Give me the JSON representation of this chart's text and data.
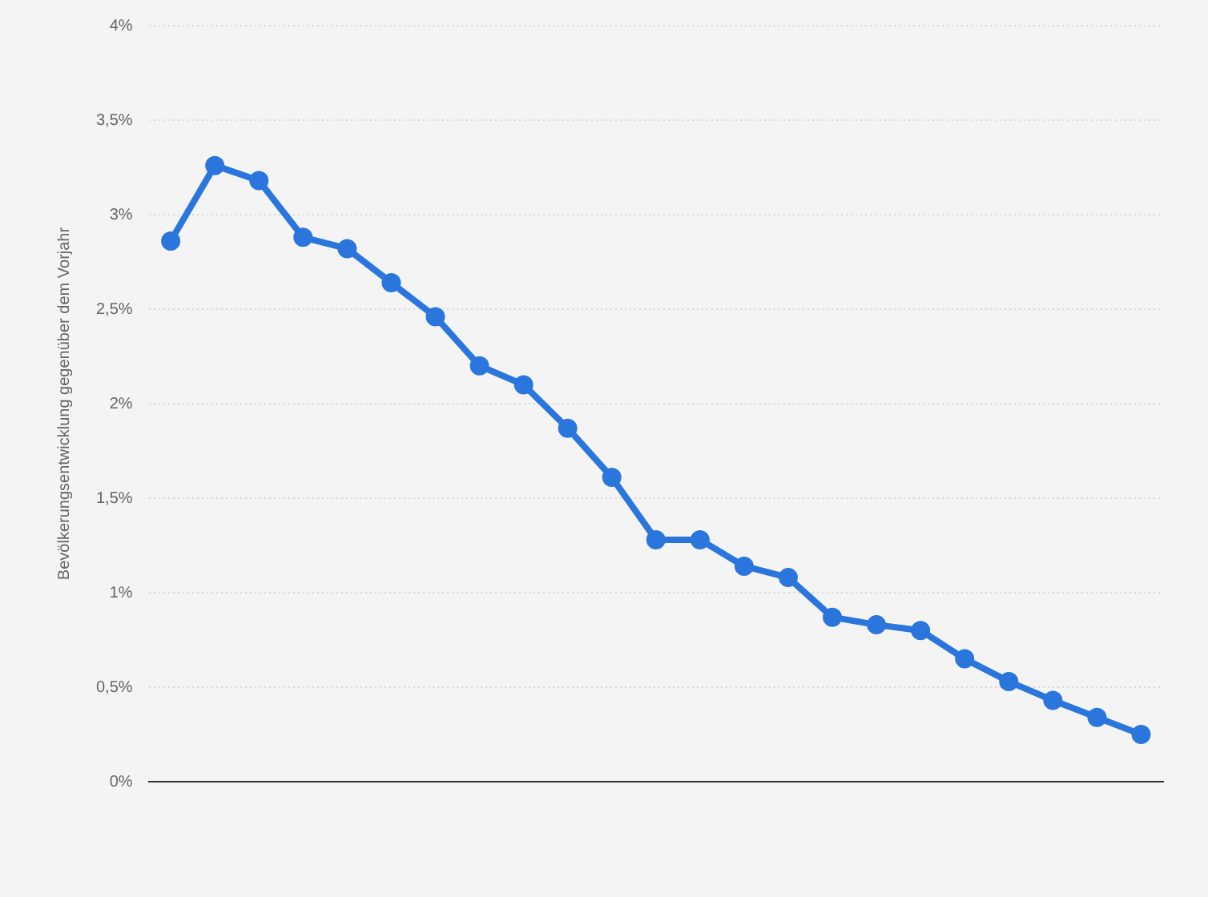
{
  "chart_data": {
    "type": "line",
    "ylabel": "Bevölkerungsentwicklung gegenüber dem Vorjahr",
    "categories": [
      null,
      null,
      null,
      null,
      null,
      null,
      null,
      null,
      null,
      null,
      null,
      null,
      null,
      null,
      null,
      null,
      null,
      null,
      null,
      null,
      null,
      null,
      null
    ],
    "series": [
      {
        "color": "#2a76dd",
        "values": [
          2.86,
          3.26,
          3.18,
          2.88,
          2.82,
          2.64,
          2.46,
          2.2,
          2.1,
          1.87,
          1.61,
          1.28,
          1.28,
          1.14,
          1.08,
          0.87,
          0.83,
          0.8,
          0.65,
          0.53,
          0.43,
          0.34,
          0.25
        ]
      }
    ],
    "ylim": [
      0,
      4
    ],
    "yticks": [
      {
        "value": 0,
        "label": "0%"
      },
      {
        "value": 0.5,
        "label": "0,5%"
      },
      {
        "value": 1,
        "label": "1%"
      },
      {
        "value": 1.5,
        "label": "1,5%"
      },
      {
        "value": 2,
        "label": "2%"
      },
      {
        "value": 2.5,
        "label": "2,5%"
      },
      {
        "value": 3,
        "label": "3%"
      },
      {
        "value": 3.5,
        "label": "3,5%"
      },
      {
        "value": 4,
        "label": "4%"
      }
    ],
    "grid": "y",
    "legend": false,
    "marker": "circle",
    "line_style": "solid",
    "tick_labels": "y"
  }
}
